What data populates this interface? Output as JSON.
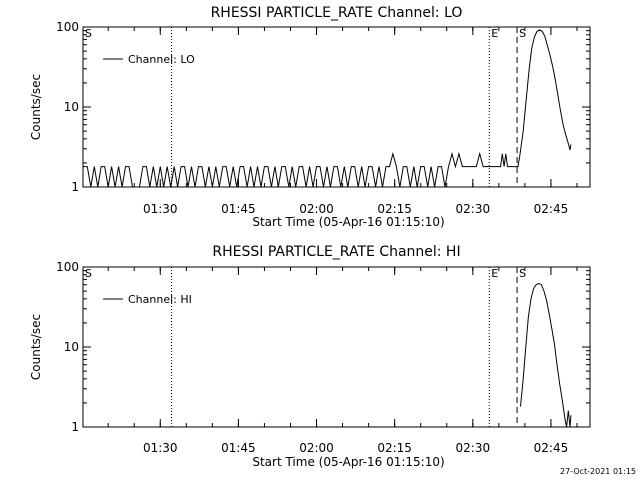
{
  "chart_data": [
    {
      "type": "line",
      "title": "RHESSI PARTICLE_RATE Channel: LO",
      "xlabel": "Start Time (05-Apr-16 01:15:10)",
      "ylabel": "Counts/sec",
      "yscale": "log",
      "ylim": [
        1,
        100
      ],
      "xlim": [
        "01:15:10",
        "02:52:30"
      ],
      "x_ticks": [
        "01:30",
        "01:45",
        "02:00",
        "02:15",
        "02:30",
        "02:45"
      ],
      "y_ticks": [
        "1",
        "10",
        "100"
      ],
      "legend": {
        "label": "Channel: LO",
        "position": "top-left"
      },
      "markers": [
        {
          "label": "S",
          "time": "01:15:10",
          "style": "solid"
        },
        {
          "label": "",
          "time": "01:32:10",
          "style": "dotted"
        },
        {
          "label": "E",
          "time": "02:33:10",
          "style": "dotted"
        },
        {
          "label": "S",
          "time": "02:38:30",
          "style": "dashed"
        },
        {
          "label": "",
          "time": "02:52:30",
          "style": "dashdot"
        }
      ],
      "series": [
        {
          "name": "Channel: LO",
          "points": [
            [
              "01:15:10",
              1.8
            ],
            [
              "01:16:00",
              1.8
            ],
            [
              "01:16:40",
              1
            ],
            [
              "01:17:20",
              1.8
            ],
            [
              "01:18:00",
              1
            ],
            [
              "01:18:40",
              1.8
            ],
            [
              "01:19:20",
              1.8
            ],
            [
              "01:20:00",
              1
            ],
            [
              "01:20:40",
              1.8
            ],
            [
              "01:21:20",
              1
            ],
            [
              "01:22:00",
              1.8
            ],
            [
              "01:22:40",
              1
            ],
            [
              "01:23:20",
              1.8
            ],
            [
              "01:24:00",
              1.8
            ],
            [
              "01:24:40",
              1
            ],
            [
              "01:26:00",
              1
            ],
            [
              "01:26:40",
              1.8
            ],
            [
              "01:27:20",
              1.8
            ],
            [
              "01:28:00",
              1
            ],
            [
              "01:28:40",
              1.8
            ],
            [
              "01:29:20",
              1
            ],
            [
              "01:30:00",
              1.8
            ],
            [
              "01:30:40",
              1
            ],
            [
              "01:31:20",
              1.8
            ],
            [
              "01:32:00",
              1
            ],
            [
              "01:32:40",
              1.8
            ],
            [
              "01:33:20",
              1
            ],
            [
              "01:34:00",
              1.8
            ],
            [
              "01:34:40",
              1.8
            ],
            [
              "01:35:20",
              1
            ],
            [
              "01:36:00",
              1.8
            ],
            [
              "01:36:40",
              1
            ],
            [
              "01:37:20",
              1.8
            ],
            [
              "01:38:00",
              1.8
            ],
            [
              "01:38:40",
              1
            ],
            [
              "01:39:20",
              1.8
            ],
            [
              "01:40:00",
              1
            ],
            [
              "01:40:40",
              1.8
            ],
            [
              "01:41:20",
              1
            ],
            [
              "01:42:00",
              1.8
            ],
            [
              "01:42:40",
              1.8
            ],
            [
              "01:43:20",
              1
            ],
            [
              "01:44:00",
              1.8
            ],
            [
              "01:44:40",
              1
            ],
            [
              "01:45:20",
              1.8
            ],
            [
              "01:46:00",
              1.8
            ],
            [
              "01:46:40",
              1
            ],
            [
              "01:47:20",
              1.8
            ],
            [
              "01:48:00",
              1
            ],
            [
              "01:48:40",
              1.8
            ],
            [
              "01:49:20",
              1
            ],
            [
              "01:50:00",
              1.8
            ],
            [
              "01:50:40",
              1.8
            ],
            [
              "01:51:20",
              1
            ],
            [
              "01:52:00",
              1.8
            ],
            [
              "01:52:40",
              1
            ],
            [
              "01:53:20",
              1.8
            ],
            [
              "01:54:00",
              1.8
            ],
            [
              "01:54:40",
              1
            ],
            [
              "01:55:20",
              1.8
            ],
            [
              "01:56:00",
              1
            ],
            [
              "01:56:40",
              1.8
            ],
            [
              "01:57:20",
              1.8
            ],
            [
              "01:58:00",
              1
            ],
            [
              "01:58:40",
              1.8
            ],
            [
              "01:59:20",
              1
            ],
            [
              "02:00:00",
              1.8
            ],
            [
              "02:00:40",
              1.8
            ],
            [
              "02:01:20",
              1
            ],
            [
              "02:02:00",
              1.8
            ],
            [
              "02:02:40",
              1
            ],
            [
              "02:03:20",
              1.8
            ],
            [
              "02:04:00",
              1.8
            ],
            [
              "02:04:40",
              1
            ],
            [
              "02:05:20",
              1.8
            ],
            [
              "02:06:00",
              1
            ],
            [
              "02:06:40",
              1.8
            ],
            [
              "02:07:20",
              1.8
            ],
            [
              "02:08:00",
              1
            ],
            [
              "02:08:40",
              1.8
            ],
            [
              "02:09:20",
              1
            ],
            [
              "02:10:00",
              1.8
            ],
            [
              "02:10:40",
              1.8
            ],
            [
              "02:11:20",
              1
            ],
            [
              "02:12:00",
              1.8
            ],
            [
              "02:12:40",
              1
            ],
            [
              "02:13:20",
              1.8
            ],
            [
              "02:14:00",
              1.8
            ],
            [
              "02:14:40",
              2.6
            ],
            [
              "02:15:20",
              1.8
            ],
            [
              "02:16:00",
              1
            ],
            [
              "02:16:40",
              1.8
            ],
            [
              "02:17:20",
              1.8
            ],
            [
              "02:18:00",
              1
            ],
            [
              "02:18:40",
              1.8
            ],
            [
              "02:19:20",
              1
            ],
            [
              "02:20:00",
              1.8
            ],
            [
              "02:20:40",
              1.8
            ],
            [
              "02:21:20",
              1
            ],
            [
              "02:22:00",
              1.8
            ],
            [
              "02:22:40",
              1
            ],
            [
              "02:23:20",
              1.8
            ],
            [
              "02:24:00",
              1.8
            ],
            [
              "02:24:40",
              1
            ],
            [
              "02:25:20",
              1.8
            ],
            [
              "02:26:00",
              2.6
            ],
            [
              "02:26:40",
              1.8
            ],
            [
              "02:27:20",
              2.6
            ],
            [
              "02:28:00",
              1.8
            ],
            [
              "02:28:40",
              1.8
            ],
            [
              "02:29:20",
              1.8
            ],
            [
              "02:30:00",
              1.8
            ],
            [
              "02:30:40",
              1.8
            ],
            [
              "02:31:20",
              2.6
            ],
            [
              "02:32:00",
              1.8
            ],
            [
              "02:32:40",
              1.8
            ],
            [
              "02:33:20",
              1.8
            ],
            [
              "02:34:00",
              1.8
            ],
            [
              "02:34:40",
              1.8
            ],
            [
              "02:35:20",
              1.8
            ],
            [
              "02:35:40",
              2.6
            ],
            [
              "02:36:00",
              1.8
            ],
            [
              "02:36:20",
              2.6
            ],
            [
              "02:36:40",
              1.8
            ],
            [
              "02:37:20",
              1.8
            ],
            [
              "02:38:00",
              1.8
            ],
            [
              "02:38:20",
              1.8
            ],
            [
              "02:38:40",
              1.8
            ],
            [
              "02:39:00",
              2.4
            ],
            [
              "02:39:40",
              5
            ],
            [
              "02:40:20",
              14
            ],
            [
              "02:40:50",
              30
            ],
            [
              "02:41:20",
              55
            ],
            [
              "02:41:50",
              75
            ],
            [
              "02:42:20",
              88
            ],
            [
              "02:42:50",
              92
            ],
            [
              "02:43:20",
              88
            ],
            [
              "02:43:50",
              76
            ],
            [
              "02:44:20",
              58
            ],
            [
              "02:44:50",
              44
            ],
            [
              "02:45:20",
              32
            ],
            [
              "02:45:50",
              22
            ],
            [
              "02:46:20",
              14
            ],
            [
              "02:46:50",
              9
            ],
            [
              "02:47:20",
              6
            ],
            [
              "02:47:50",
              4.5
            ],
            [
              "02:48:20",
              3.5
            ],
            [
              "02:48:40",
              2.9
            ],
            [
              "02:48:50",
              3.4
            ]
          ]
        }
      ]
    },
    {
      "type": "line",
      "title": "RHESSI PARTICLE_RATE Channel: HI",
      "xlabel": "Start Time (05-Apr-16 01:15:10)",
      "ylabel": "Counts/sec",
      "yscale": "log",
      "ylim": [
        1,
        100
      ],
      "xlim": [
        "01:15:10",
        "02:52:30"
      ],
      "x_ticks": [
        "01:30",
        "01:45",
        "02:00",
        "02:15",
        "02:30",
        "02:45"
      ],
      "y_ticks": [
        "1",
        "10",
        "100"
      ],
      "legend": {
        "label": "Channel: HI",
        "position": "top-left"
      },
      "markers": [
        {
          "label": "S",
          "time": "01:15:10",
          "style": "solid"
        },
        {
          "label": "",
          "time": "01:32:10",
          "style": "dotted"
        },
        {
          "label": "E",
          "time": "02:33:10",
          "style": "dotted"
        },
        {
          "label": "S",
          "time": "02:38:30",
          "style": "dashed"
        },
        {
          "label": "",
          "time": "02:52:30",
          "style": "dashdot"
        }
      ],
      "series": [
        {
          "name": "Channel: HI",
          "points": [
            [
              "02:39:10",
              1.8
            ],
            [
              "02:39:40",
              4
            ],
            [
              "02:40:10",
              10
            ],
            [
              "02:40:40",
              24
            ],
            [
              "02:41:10",
              40
            ],
            [
              "02:41:40",
              54
            ],
            [
              "02:42:10",
              60
            ],
            [
              "02:42:40",
              62
            ],
            [
              "02:43:10",
              60
            ],
            [
              "02:43:40",
              50
            ],
            [
              "02:44:10",
              38
            ],
            [
              "02:44:40",
              26
            ],
            [
              "02:45:10",
              17
            ],
            [
              "02:45:40",
              11
            ],
            [
              "02:46:10",
              6
            ],
            [
              "02:46:40",
              3.5
            ],
            [
              "02:47:10",
              2.2
            ],
            [
              "02:47:40",
              1.3
            ],
            [
              "02:48:00",
              1
            ],
            [
              "02:48:20",
              1.6
            ],
            [
              "02:48:40",
              1
            ],
            [
              "02:48:50",
              1.4
            ]
          ]
        }
      ]
    }
  ],
  "footer": {
    "timestamp": "27-Oct-2021 01:15"
  }
}
